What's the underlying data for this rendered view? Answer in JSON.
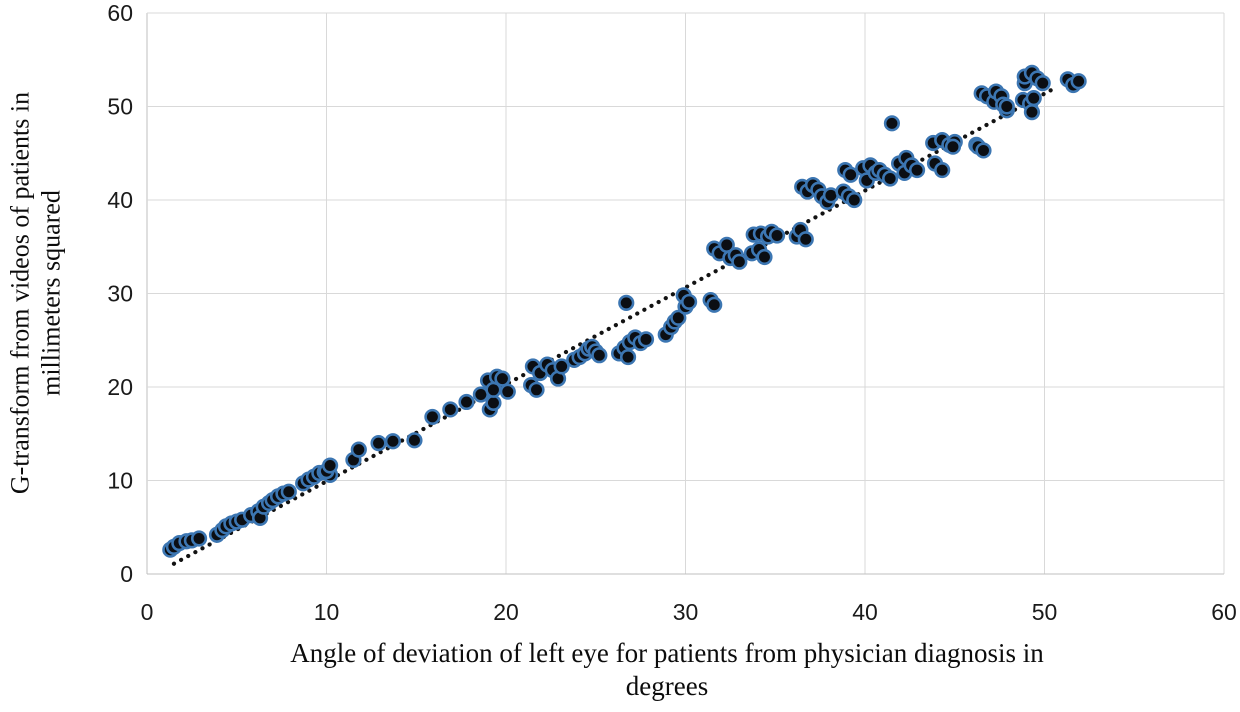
{
  "chart_data": {
    "type": "scatter",
    "title": "",
    "xlabel": "Angle of deviation of left eye for patients from physician diagnosis in degrees",
    "xlabel_lines": [
      "Angle of deviation of left eye for patients from physician diagnosis in",
      "degrees"
    ],
    "ylabel": "G-transform from videos of patients in millimeters squared",
    "ylabel_lines": [
      "G-transform from videos of patients in",
      "millimeters squared"
    ],
    "xlim": [
      0,
      60
    ],
    "ylim": [
      0,
      60
    ],
    "xticks": [
      0,
      10,
      20,
      30,
      40,
      50,
      60
    ],
    "yticks": [
      0,
      10,
      20,
      30,
      40,
      50,
      60
    ],
    "grid": true,
    "legend": false,
    "colors": {
      "marker_fill": "#0b0e13",
      "marker_stroke": "#3c76b2",
      "trendline": "#121212",
      "gridline": "#d9d9d9",
      "axis_line": "#bfbfbf",
      "tick_text": "#1a1a1a"
    },
    "trendline": {
      "style": "dotted",
      "x1": 1.5,
      "y1": 1.1,
      "x2": 50.7,
      "y2": 52.1
    },
    "series": [
      {
        "name": "patients",
        "points": [
          [
            1.3,
            2.6
          ],
          [
            1.5,
            2.9
          ],
          [
            1.8,
            3.3
          ],
          [
            2.2,
            3.5
          ],
          [
            2.5,
            3.6
          ],
          [
            2.9,
            3.8
          ],
          [
            3.9,
            4.2
          ],
          [
            4.2,
            4.7
          ],
          [
            4.4,
            5.1
          ],
          [
            4.7,
            5.4
          ],
          [
            5.0,
            5.6
          ],
          [
            5.3,
            5.8
          ],
          [
            5.8,
            6.3
          ],
          [
            6.2,
            6.7
          ],
          [
            6.3,
            6.0
          ],
          [
            6.5,
            7.2
          ],
          [
            6.8,
            7.6
          ],
          [
            7.0,
            7.9
          ],
          [
            7.3,
            8.3
          ],
          [
            7.6,
            8.6
          ],
          [
            7.9,
            8.8
          ],
          [
            8.7,
            9.7
          ],
          [
            9.0,
            10.1
          ],
          [
            9.3,
            10.4
          ],
          [
            9.6,
            10.8
          ],
          [
            9.9,
            10.9
          ],
          [
            10.2,
            10.6
          ],
          [
            10.0,
            11.0
          ],
          [
            10.2,
            11.6
          ],
          [
            11.5,
            12.2
          ],
          [
            11.8,
            13.3
          ],
          [
            12.9,
            14.0
          ],
          [
            13.7,
            14.2
          ],
          [
            14.9,
            14.3
          ],
          [
            15.9,
            16.8
          ],
          [
            16.9,
            17.6
          ],
          [
            17.8,
            18.4
          ],
          [
            18.6,
            19.2
          ],
          [
            19.1,
            17.6
          ],
          [
            19.3,
            18.3
          ],
          [
            19.0,
            20.7
          ],
          [
            19.3,
            19.7
          ],
          [
            19.5,
            21.1
          ],
          [
            19.8,
            20.9
          ],
          [
            20.1,
            19.5
          ],
          [
            21.4,
            20.2
          ],
          [
            21.5,
            22.2
          ],
          [
            21.7,
            19.7
          ],
          [
            21.9,
            21.5
          ],
          [
            22.3,
            22.4
          ],
          [
            22.6,
            21.8
          ],
          [
            22.9,
            20.9
          ],
          [
            23.1,
            22.2
          ],
          [
            23.8,
            22.9
          ],
          [
            24.1,
            23.2
          ],
          [
            24.4,
            23.6
          ],
          [
            24.6,
            24.1
          ],
          [
            24.8,
            24.3
          ],
          [
            25.0,
            23.8
          ],
          [
            25.2,
            23.4
          ],
          [
            26.3,
            23.6
          ],
          [
            26.6,
            24.2
          ],
          [
            26.8,
            23.2
          ],
          [
            26.9,
            24.8
          ],
          [
            27.2,
            25.3
          ],
          [
            27.5,
            24.7
          ],
          [
            27.8,
            25.1
          ],
          [
            26.7,
            29.0
          ],
          [
            28.9,
            25.6
          ],
          [
            29.2,
            26.4
          ],
          [
            29.4,
            27.0
          ],
          [
            29.6,
            27.4
          ],
          [
            29.9,
            29.8
          ],
          [
            30.0,
            28.6
          ],
          [
            30.2,
            29.1
          ],
          [
            31.4,
            29.3
          ],
          [
            31.6,
            28.8
          ],
          [
            31.6,
            34.8
          ],
          [
            31.9,
            34.3
          ],
          [
            32.3,
            35.2
          ],
          [
            32.5,
            33.8
          ],
          [
            32.8,
            34.1
          ],
          [
            33.0,
            33.4
          ],
          [
            33.7,
            34.3
          ],
          [
            34.1,
            34.7
          ],
          [
            34.4,
            33.9
          ],
          [
            33.8,
            36.3
          ],
          [
            34.2,
            36.4
          ],
          [
            34.6,
            36.1
          ],
          [
            34.8,
            36.6
          ],
          [
            35.1,
            36.2
          ],
          [
            36.2,
            36.1
          ],
          [
            36.4,
            36.8
          ],
          [
            36.7,
            35.8
          ],
          [
            36.5,
            41.4
          ],
          [
            36.8,
            40.9
          ],
          [
            37.1,
            41.6
          ],
          [
            37.4,
            41.1
          ],
          [
            37.6,
            40.4
          ],
          [
            37.9,
            39.8
          ],
          [
            38.1,
            40.5
          ],
          [
            38.8,
            40.9
          ],
          [
            39.1,
            40.4
          ],
          [
            39.4,
            40.0
          ],
          [
            38.9,
            43.2
          ],
          [
            39.2,
            42.7
          ],
          [
            39.9,
            43.4
          ],
          [
            40.1,
            42.1
          ],
          [
            40.3,
            43.7
          ],
          [
            40.6,
            42.9
          ],
          [
            40.8,
            43.2
          ],
          [
            41.1,
            42.7
          ],
          [
            41.4,
            42.3
          ],
          [
            41.9,
            43.9
          ],
          [
            42.2,
            42.9
          ],
          [
            42.3,
            44.5
          ],
          [
            42.6,
            43.7
          ],
          [
            42.9,
            43.2
          ],
          [
            41.5,
            48.2
          ],
          [
            43.8,
            46.1
          ],
          [
            43.9,
            43.9
          ],
          [
            44.3,
            46.4
          ],
          [
            44.3,
            43.2
          ],
          [
            44.7,
            45.9
          ],
          [
            45.0,
            46.2
          ],
          [
            44.9,
            45.7
          ],
          [
            46.2,
            45.9
          ],
          [
            46.3,
            45.7
          ],
          [
            46.6,
            45.3
          ],
          [
            46.5,
            51.4
          ],
          [
            46.8,
            51.1
          ],
          [
            47.2,
            50.5
          ],
          [
            47.3,
            51.6
          ],
          [
            47.6,
            51.1
          ],
          [
            47.7,
            50.2
          ],
          [
            47.9,
            49.6
          ],
          [
            47.9,
            50.0
          ],
          [
            48.8,
            50.7
          ],
          [
            49.2,
            50.3
          ],
          [
            49.4,
            50.9
          ],
          [
            49.3,
            49.4
          ],
          [
            48.9,
            52.5
          ],
          [
            48.9,
            53.2
          ],
          [
            49.3,
            53.6
          ],
          [
            49.6,
            53.0
          ],
          [
            49.9,
            52.5
          ],
          [
            51.3,
            52.9
          ],
          [
            51.6,
            52.3
          ],
          [
            51.9,
            52.7
          ]
        ]
      }
    ]
  }
}
